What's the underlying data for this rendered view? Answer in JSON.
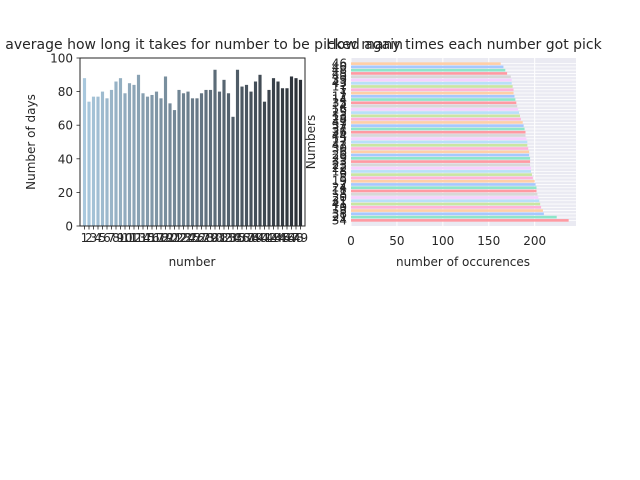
{
  "chart_data": [
    {
      "type": "bar",
      "title": "On average how long it takes for number to be picked again",
      "xlabel": "number",
      "ylabel": "Number of days",
      "ylim": [
        0,
        100
      ],
      "yticks": [
        0,
        20,
        40,
        60,
        80,
        100
      ],
      "categories": [
        "1",
        "2",
        "3",
        "4",
        "5",
        "6",
        "7",
        "8",
        "9",
        "10",
        "11",
        "12",
        "13",
        "14",
        "15",
        "16",
        "17",
        "18",
        "19",
        "20",
        "21",
        "22",
        "23",
        "24",
        "25",
        "26",
        "27",
        "28",
        "29",
        "30",
        "31",
        "32",
        "33",
        "34",
        "35",
        "36",
        "37",
        "38",
        "39",
        "40",
        "41",
        "42",
        "43",
        "44",
        "45",
        "46",
        "47",
        "48",
        "49"
      ],
      "values": [
        88,
        74,
        77,
        77,
        80,
        76,
        81,
        86,
        88,
        79,
        85,
        84,
        90,
        79,
        77,
        78,
        80,
        76,
        89,
        73,
        69,
        81,
        79,
        80,
        76,
        76,
        79,
        81,
        81,
        93,
        80,
        87,
        79,
        65,
        93,
        83,
        84,
        80,
        86,
        90,
        74,
        81,
        88,
        86,
        82,
        82,
        89,
        88,
        87
      ],
      "colors": {
        "start": "#a9c8dd",
        "end": "#2a2f36"
      }
    },
    {
      "type": "bar",
      "orientation": "horizontal",
      "title": "How many times each number got pick",
      "xlabel": "number of occurences",
      "ylabel": "Numbers",
      "xlim": [
        0,
        245
      ],
      "xticks": [
        0,
        50,
        100,
        150,
        200
      ],
      "categories": [
        "34",
        "21",
        "38",
        "3",
        "10",
        "41",
        "31",
        "20",
        "8",
        "11",
        "24",
        "2",
        "19",
        "5",
        "9",
        "18",
        "22",
        "23",
        "33",
        "29",
        "26",
        "6",
        "30",
        "42",
        "27",
        "15",
        "44",
        "36",
        "37",
        "32",
        "47",
        "28",
        "13",
        "25",
        "16",
        "4",
        "35",
        "14",
        "12",
        "7",
        "1",
        "17",
        "43",
        "39",
        "49",
        "45",
        "48",
        "40",
        "46"
      ],
      "values": [
        237,
        224,
        210,
        209,
        207,
        206,
        205,
        204,
        203,
        202,
        202,
        201,
        200,
        198,
        197,
        196,
        196,
        195,
        195,
        195,
        194,
        194,
        193,
        192,
        192,
        191,
        190,
        190,
        189,
        188,
        187,
        185,
        184,
        183,
        182,
        181,
        180,
        179,
        178,
        177,
        177,
        176,
        175,
        175,
        174,
        170,
        168,
        166,
        163
      ],
      "palette": [
        "#ff9aa2",
        "#8ee6c9",
        "#a6c8ff",
        "#ffcfa6",
        "#ffb3d9",
        "#c9e6a1",
        "#b8e0f9",
        "#f7d1ff",
        "#d8d8d8"
      ]
    }
  ]
}
